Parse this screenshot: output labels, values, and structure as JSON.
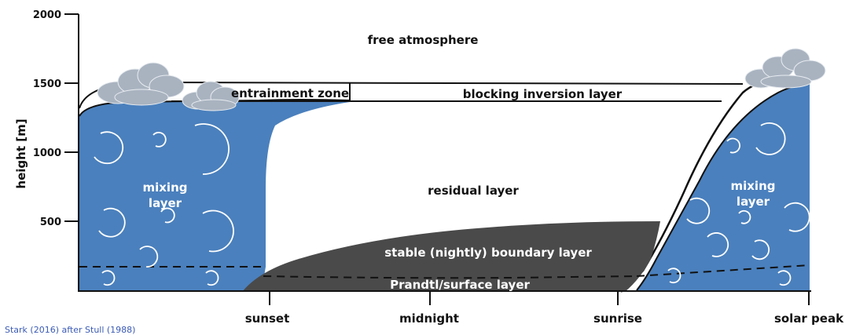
{
  "axis": {
    "ylabel": "height [m]",
    "yticks": [
      "2000",
      "1500",
      "1000",
      "500"
    ],
    "xticks": [
      "sunset",
      "midnight",
      "sunrise",
      "solar peak"
    ]
  },
  "labels": {
    "free_atmosphere": "free atmosphere",
    "entrainment_zone": "entrainment zone",
    "blocking_inversion": "blocking inversion layer",
    "residual_layer": "residual layer",
    "mixing_left_1": "mixing",
    "mixing_left_2": "layer",
    "mixing_right_1": "mixing",
    "mixing_right_2": "layer",
    "stable_layer": "stable (nightly) boundary layer",
    "prandtl_layer": "Prandtl/surface layer"
  },
  "credit": "Stark (2016) after Stull (1988)",
  "colors": {
    "mixing": "#4a80bd",
    "stable": "#4a4a4a",
    "cloud": "#a9b3c0",
    "text": "#111111",
    "credit": "#3b5bb5"
  }
}
